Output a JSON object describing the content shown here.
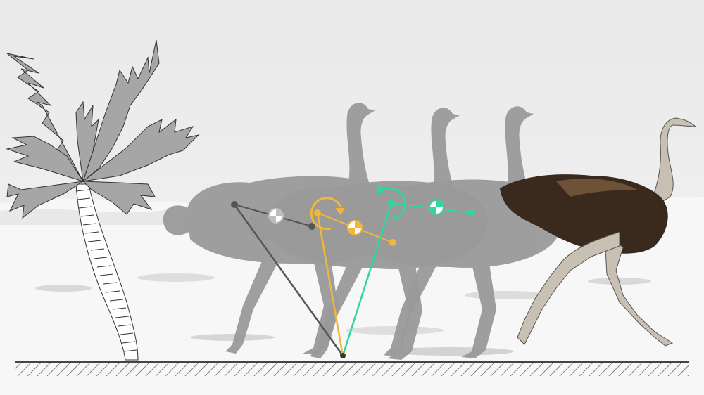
{
  "scene": {
    "colors": {
      "sky_top": "#e9e9e9",
      "sky_bottom": "#f3f3f3",
      "ground": "#f7f7f7",
      "silhouette": "#9a9a9a",
      "palm_fill": "#a6a6a6",
      "outline": "#333333",
      "gray_pendulum": "#555555",
      "gray_com": "#bdbdbd",
      "orange_pendulum": "#f2b63a",
      "green_pendulum": "#2fd6a0",
      "ostrich_body": "#3a2a1e",
      "ostrich_skin": "#c9c0b4"
    },
    "elements": [
      "palm-tree",
      "ostrich-silhouette-1",
      "ostrich-silhouette-2",
      "ostrich-silhouette-3",
      "ostrich-photo",
      "gray-leg-pendulum",
      "orange-leg-pendulum",
      "green-leg-pendulum",
      "ground-line"
    ]
  }
}
